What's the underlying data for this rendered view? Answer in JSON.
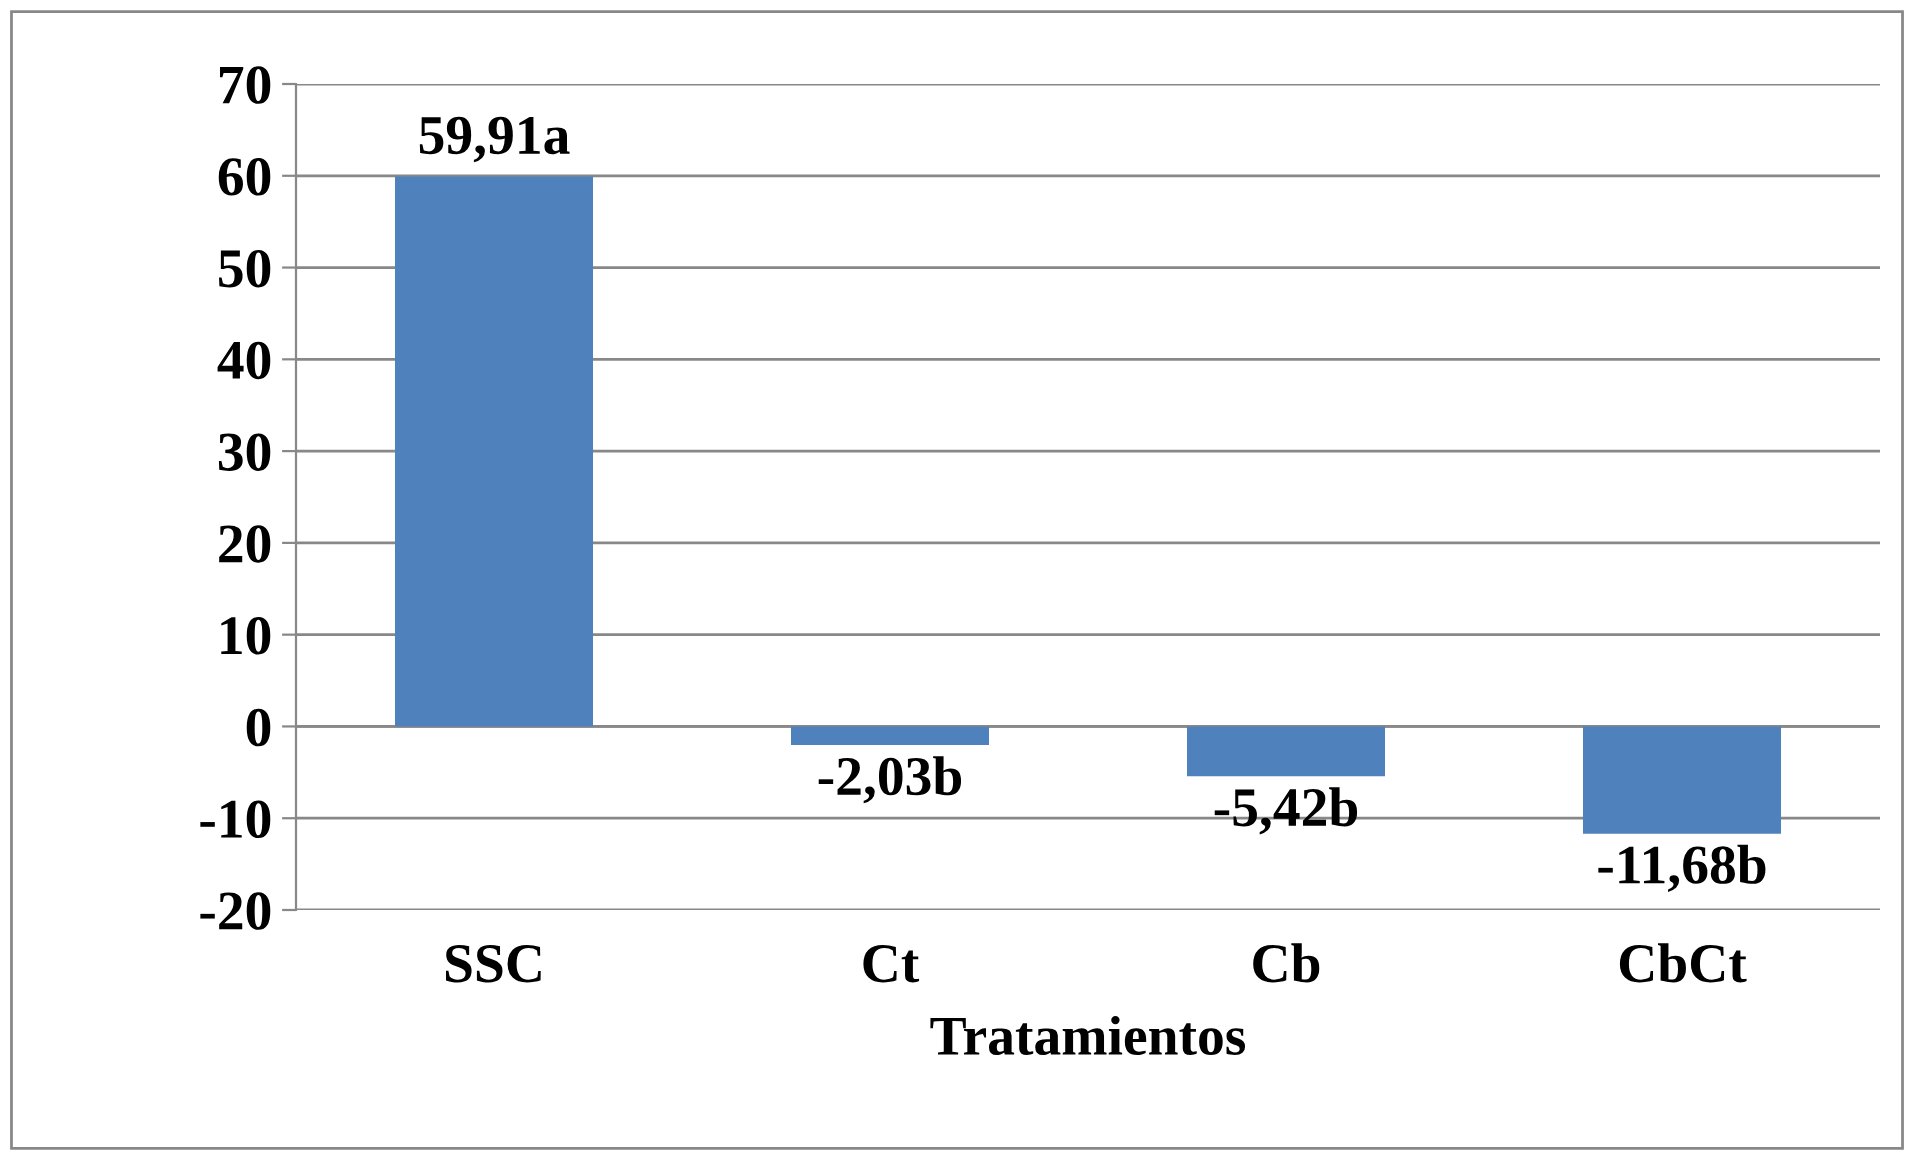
{
  "chart_data": {
    "type": "bar",
    "xlabel": "Tratamientos",
    "categories": [
      "SSC",
      "Ct",
      "Cb",
      "CbCt"
    ],
    "values": [
      59.91,
      -2.03,
      -5.42,
      -11.68
    ],
    "value_labels": [
      "59,91a",
      "-2,03b",
      "-5,42b",
      "-11,68b"
    ],
    "color": "#4f81bd",
    "ylim": [
      -20,
      70
    ],
    "yticks": [
      -20,
      -10,
      0,
      10,
      20,
      30,
      40,
      50,
      60,
      70
    ],
    "grid": "y",
    "legend": false
  }
}
